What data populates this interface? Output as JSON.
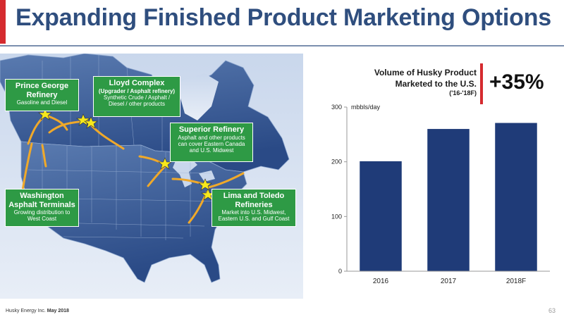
{
  "slide": {
    "title": "Expanding Finished Product Marketing Options",
    "accent_color": "#d52b2f",
    "title_color": "#2f4e7e"
  },
  "map": {
    "callouts": {
      "prince_george": {
        "title": "Prince George Refinery",
        "desc": "Gasoline and Diesel"
      },
      "lloyd": {
        "title": "Lloyd Complex",
        "subtitle": "(Upgrader / Asphalt refinery)",
        "desc": "Synthetic Crude / Asphalt / Diesel / other products"
      },
      "superior": {
        "title": "Superior Refinery",
        "desc": "Asphalt and other products can cover Eastern Canada and U.S. Midwest"
      },
      "washington": {
        "title": "Washington Asphalt Terminals",
        "desc": "Growing distribution to West Coast"
      },
      "lima_toledo": {
        "title": "Lima and Toledo Refineries",
        "desc": "Market into U.S. Midwest, Eastern U.S. and Gulf Coast"
      }
    },
    "callout_color": "#2e9a45",
    "star_color": "#f7e81c",
    "arrow_color": "#f0a92a"
  },
  "volume": {
    "label_line1": "Volume of Husky Product",
    "label_line2": "Marketed to the U.S.",
    "label_sub": "('16-'18F)",
    "increase": "+35%"
  },
  "chart_data": {
    "type": "bar",
    "categories": [
      "2016",
      "2017",
      "2018F"
    ],
    "values": [
      201,
      260,
      271
    ],
    "title": "",
    "ylabel": "mbbls/day",
    "xlabel": "",
    "ylim": [
      0,
      300
    ],
    "yticks": [
      0,
      100,
      200,
      300
    ],
    "grid": false,
    "bar_color": "#1f3b78"
  },
  "footer": {
    "company": "Husky Energy Inc.",
    "date": "May 2018",
    "page": "63"
  }
}
